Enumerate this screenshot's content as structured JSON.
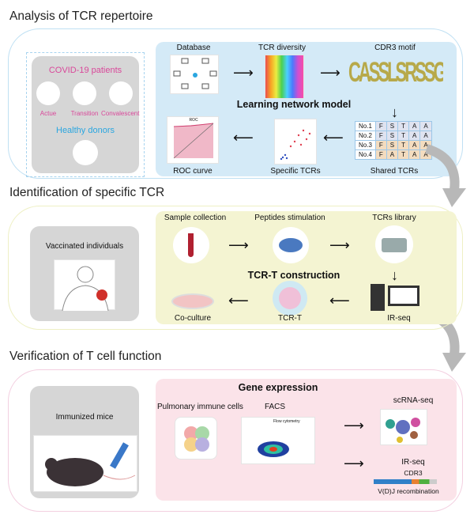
{
  "section1": {
    "title": "Analysis of TCR repertoire",
    "patients": "COVID-19 patients",
    "stages": [
      "Actue",
      "Transition",
      "Convalescent"
    ],
    "healthy": "Healthy donors",
    "steps": {
      "database": "Database",
      "diversity": "TCR diversity",
      "motif": "CDR3 motif",
      "shared": "Shared TCRs",
      "specific": "Specific TCRs",
      "roc": "ROC curve"
    },
    "model": "Learning network model",
    "motif_letters": "CASSLSRSSGGNSLFF",
    "roc_title": "ROC",
    "shared_rows": [
      {
        "label": "No.1",
        "seq": [
          "F",
          "S",
          "T",
          "A",
          "A"
        ]
      },
      {
        "label": "No.2",
        "seq": [
          "F",
          "S",
          "T",
          "A",
          "A"
        ]
      },
      {
        "label": "No.3",
        "seq": [
          "F",
          "S",
          "T",
          "A",
          "A"
        ]
      },
      {
        "label": "No.4",
        "seq": [
          "F",
          "A",
          "T",
          "A",
          "A"
        ]
      }
    ]
  },
  "section2": {
    "title": "Identification of specific TCR",
    "subject": "Vaccinated individuals",
    "steps": {
      "sample": "Sample collection",
      "peptides": "Peptides stimulation",
      "library": "TCRs library",
      "irseq": "IR-seq",
      "tcrt": "TCR-T",
      "coculture": "Co-culture"
    },
    "center": "TCR-T construction"
  },
  "section3": {
    "title": "Verification of T cell function",
    "subject": "Immunized mice",
    "center": "Gene expression",
    "steps": {
      "pulmonary": "Pulmonary immune cells",
      "facs": "FACS",
      "scrna": "scRNA-seq",
      "irseq": "IR-seq",
      "cdr3": "CDR3",
      "vdj": "V(D)J recombination"
    },
    "facs_title": "Flow cytometry"
  },
  "colors": {
    "pink": "#d9489a",
    "blue": "#2aa6e0",
    "panel1": "#d4eaf7",
    "panel2": "#f4f4d2",
    "panel3": "#fbe3e9"
  }
}
